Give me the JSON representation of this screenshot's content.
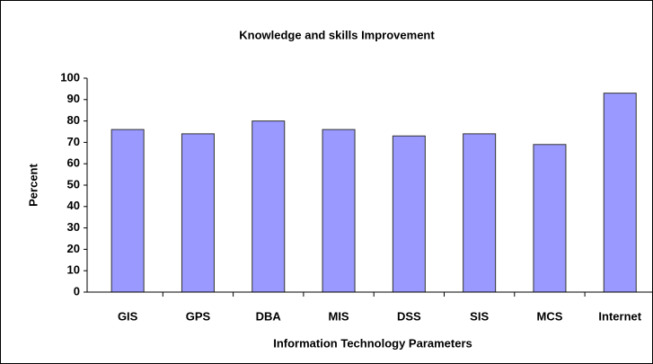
{
  "chart_data": {
    "type": "bar",
    "title": "Knowledge and skills Improvement",
    "x_label": "Information Technology Parameters",
    "y_label": "Percent",
    "categories": [
      "GIS",
      "GPS",
      "DBA",
      "MIS",
      "DSS",
      "SIS",
      "MCS",
      "Internet"
    ],
    "values": [
      76,
      74,
      80,
      76,
      73,
      74,
      69,
      93
    ],
    "color": "#9999ff",
    "ylim": [
      0,
      100
    ],
    "yticks": [
      0,
      10,
      20,
      30,
      40,
      50,
      60,
      70,
      80,
      90,
      100
    ],
    "grid": false
  }
}
